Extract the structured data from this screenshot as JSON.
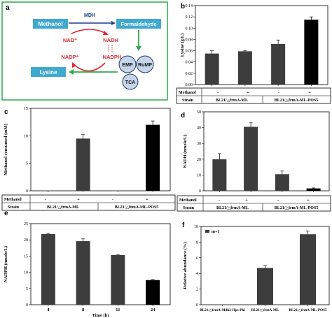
{
  "panels": {
    "a": "a",
    "b": "b",
    "c": "c",
    "d": "d",
    "e": "e",
    "f": "f"
  },
  "diagram": {
    "methanol": "Methanol",
    "formaldehyde": "Formaldehyde",
    "lysine": "Lysine",
    "mdh": "MDH",
    "nad_plus": "NAD⁺",
    "nadh": "NADH",
    "nadp_plus": "NADP⁺",
    "nadph": "NADPH",
    "emp": "EMP",
    "rump": "RuMP",
    "tca": "TCA",
    "colors": {
      "box": "#3fa9cf",
      "arrow": "#e0282e",
      "green_arrow": "#2eaa4a",
      "node": "#c6d6e8",
      "border": "#2eaa4a"
    }
  },
  "tables": {
    "methanol_label": "Methanol",
    "strain_label": "Strain",
    "minus": "-",
    "plus": "+",
    "strain1": "BL21/△frmA-ML",
    "strain2": "BL21/△frmA-ML-POS5"
  },
  "chart_data": [
    {
      "id": "b",
      "type": "bar",
      "ylabel": "Lysine (g/L)",
      "ylim": [
        0,
        0.14
      ],
      "yticks": [
        "0.00",
        "0.02",
        "0.04",
        "0.06",
        "0.08",
        "0.10",
        "0.12",
        "0.14"
      ],
      "values": [
        0.055,
        0.059,
        0.072,
        0.115
      ],
      "errors": [
        0.005,
        0.001,
        0.007,
        0.005
      ],
      "colors": [
        "#3d3d3d",
        "#3d3d3d",
        "#3d3d3d",
        "#000000"
      ]
    },
    {
      "id": "c",
      "type": "bar",
      "ylabel": "Methanol consumed (mM)",
      "ylim": [
        0,
        15
      ],
      "yticks": [
        "0",
        "5",
        "10",
        "15"
      ],
      "values": [
        0,
        9.5,
        0,
        12
      ],
      "errors": [
        0,
        0.7,
        0,
        0.7
      ],
      "colors": [
        "#3d3d3d",
        "#3d3d3d",
        "#3d3d3d",
        "#000000"
      ]
    },
    {
      "id": "d",
      "type": "bar",
      "ylabel": "NADH (nmole/L)",
      "ylim": [
        0,
        50
      ],
      "yticks": [
        "0",
        "10",
        "20",
        "30",
        "40",
        "50"
      ],
      "values": [
        20,
        40.5,
        10.5,
        1.5
      ],
      "errors": [
        3.5,
        2.5,
        2.0,
        0.3
      ],
      "colors": [
        "#3d3d3d",
        "#3d3d3d",
        "#3d3d3d",
        "#000000"
      ]
    },
    {
      "id": "e",
      "type": "bar",
      "xlabel": "Time (h)",
      "ylabel": "NADPH (nmole/L)",
      "ylim": [
        0,
        25
      ],
      "yticks": [
        "0",
        "5",
        "10",
        "15",
        "20",
        "25"
      ],
      "categories": [
        "4",
        "8",
        "11",
        "24"
      ],
      "values": [
        21.8,
        19.6,
        15.3,
        7.6
      ],
      "errors": [
        0.2,
        0.7,
        0.2,
        0.2
      ],
      "colors": [
        "#3d3d3d",
        "#3d3d3d",
        "#3d3d3d",
        "#000000"
      ]
    },
    {
      "id": "f",
      "type": "bar",
      "ylabel": "Relative abundance (%)",
      "ylim": [
        0,
        10
      ],
      "yticks": [
        "0",
        "2",
        "4",
        "6",
        "8",
        "10"
      ],
      "categories": [
        "BL21/△frmA-Mdh2-Hps-Phi",
        "BL21/△frmA-ML",
        "BL21/△frmA-ML-POS5"
      ],
      "values": [
        0,
        4.7,
        9.0
      ],
      "errors": [
        0,
        0.3,
        0.4
      ],
      "colors": [
        "#3d3d3d",
        "#3d3d3d",
        "#3d3d3d"
      ],
      "legend": "m+1",
      "legend_position": "top-left"
    }
  ]
}
